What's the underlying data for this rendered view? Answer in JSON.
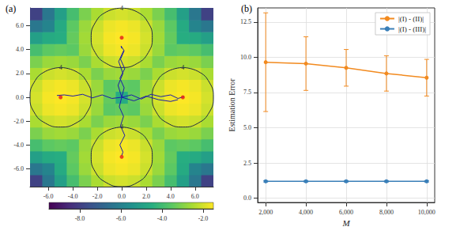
{
  "chart_data": [
    {
      "type": "heatmap",
      "title": "(a)",
      "x": [
        -7,
        -6,
        -5,
        -4,
        -3,
        -2,
        -1,
        0,
        1,
        2,
        3,
        4,
        5,
        6,
        7
      ],
      "y": [
        -7,
        -6,
        -5,
        -4,
        -3,
        -2,
        -1,
        0,
        1,
        2,
        3,
        4,
        5,
        6,
        7
      ],
      "cells": [
        [
          -7.9,
          -6.3,
          -5.0,
          -3.9,
          -3.1,
          -2.5,
          -2.1,
          -2.0,
          -2.1,
          -2.5,
          -3.1,
          -3.9,
          -5.0,
          -6.3,
          -7.9
        ],
        [
          -6.3,
          -5.9,
          -4.6,
          -3.5,
          -2.7,
          -2.1,
          -1.7,
          -1.6,
          -1.7,
          -2.1,
          -2.7,
          -3.5,
          -4.6,
          -5.9,
          -6.3
        ],
        [
          -5.0,
          -4.6,
          -4.5,
          -3.4,
          -2.6,
          -2.0,
          -1.6,
          -1.5,
          -1.6,
          -2.0,
          -2.6,
          -3.4,
          -4.5,
          -4.6,
          -5.0
        ],
        [
          -3.9,
          -3.5,
          -3.4,
          -3.5,
          -2.7,
          -2.1,
          -1.7,
          -1.6,
          -1.7,
          -2.1,
          -2.7,
          -3.5,
          -3.4,
          -3.5,
          -3.9
        ],
        [
          -3.1,
          -2.7,
          -2.6,
          -2.7,
          -3.1,
          -2.5,
          -2.1,
          -2.0,
          -2.1,
          -2.5,
          -3.1,
          -2.7,
          -2.6,
          -2.7,
          -3.1
        ],
        [
          -2.5,
          -2.1,
          -2.0,
          -2.1,
          -2.5,
          -3.1,
          -2.7,
          -2.6,
          -2.7,
          -3.1,
          -2.5,
          -2.1,
          -2.0,
          -2.1,
          -2.5
        ],
        [
          -2.1,
          -1.7,
          -1.6,
          -1.7,
          -2.1,
          -2.7,
          -3.5,
          -3.4,
          -3.5,
          -2.7,
          -2.1,
          -1.7,
          -1.6,
          -1.7,
          -2.1
        ],
        [
          -2.0,
          -1.6,
          -1.5,
          -1.6,
          -2.0,
          -2.6,
          -3.4,
          -4.5,
          -3.4,
          -2.6,
          -2.0,
          -1.6,
          -1.5,
          -1.6,
          -2.0
        ],
        [
          -2.1,
          -1.7,
          -1.6,
          -1.7,
          -2.1,
          -2.7,
          -3.5,
          -3.4,
          -3.5,
          -2.7,
          -2.1,
          -1.7,
          -1.6,
          -1.7,
          -2.1
        ],
        [
          -2.5,
          -2.1,
          -2.0,
          -2.1,
          -2.5,
          -3.1,
          -2.7,
          -2.6,
          -2.7,
          -3.1,
          -2.5,
          -2.1,
          -2.0,
          -2.1,
          -2.5
        ],
        [
          -3.1,
          -2.7,
          -2.6,
          -2.7,
          -3.1,
          -2.5,
          -2.1,
          -2.0,
          -2.1,
          -2.5,
          -3.1,
          -2.7,
          -2.6,
          -2.7,
          -3.1
        ],
        [
          -3.9,
          -3.5,
          -3.4,
          -3.5,
          -2.7,
          -2.1,
          -1.7,
          -1.6,
          -1.7,
          -2.1,
          -2.7,
          -3.5,
          -3.4,
          -3.5,
          -3.9
        ],
        [
          -5.0,
          -4.6,
          -4.5,
          -3.4,
          -2.6,
          -2.0,
          -1.6,
          -1.5,
          -1.6,
          -2.0,
          -2.6,
          -3.4,
          -4.5,
          -4.6,
          -5.0
        ],
        [
          -6.3,
          -5.9,
          -4.6,
          -3.5,
          -2.7,
          -2.1,
          -1.7,
          -1.6,
          -1.7,
          -2.1,
          -2.7,
          -3.5,
          -4.6,
          -5.9,
          -6.3
        ],
        [
          -7.9,
          -6.3,
          -5.0,
          -3.9,
          -3.1,
          -2.5,
          -2.1,
          -2.0,
          -2.1,
          -2.5,
          -3.1,
          -3.9,
          -5.0,
          -6.3,
          -7.9
        ]
      ],
      "xlim": [
        -7.5,
        7.5
      ],
      "ylim": [
        -7.5,
        7.5
      ],
      "xticks": [
        {
          "value": -6,
          "label": "-6.0"
        },
        {
          "value": -4,
          "label": "-4.0"
        },
        {
          "value": -2,
          "label": "-2.0"
        },
        {
          "value": 0,
          "label": "0.0"
        },
        {
          "value": 2,
          "label": "2.0"
        },
        {
          "value": 4,
          "label": "4.0"
        },
        {
          "value": 6,
          "label": "6.0"
        }
      ],
      "yticks": [
        {
          "value": -6,
          "label": "-6.0"
        },
        {
          "value": -4,
          "label": "-4.0"
        },
        {
          "value": -2,
          "label": "-2.0"
        },
        {
          "value": 0,
          "label": "0.0"
        },
        {
          "value": 2,
          "label": "2.0"
        },
        {
          "value": 4,
          "label": "4.0"
        },
        {
          "value": 6,
          "label": "6.0"
        }
      ],
      "colorbar": {
        "range": [
          -9.5,
          -1.5
        ],
        "ticks": [
          {
            "value": -8,
            "label": "-8.0"
          },
          {
            "value": -6,
            "label": "-6.0"
          },
          {
            "value": -4,
            "label": "-4.0"
          },
          {
            "value": -2,
            "label": "-2.0"
          }
        ]
      },
      "contours": [
        {
          "level": 4,
          "color": "#1e2a44",
          "paths": [
            {
              "x": [
                5,
                3.75,
                2.83,
                2.5,
                2.83,
                3.75,
                5,
                6.25,
                7.17,
                7.5,
                7.17,
                6.25,
                5
              ],
              "y": [
                2.5,
                2.17,
                1.25,
                0,
                -1.25,
                -2.17,
                -2.5,
                -2.17,
                -1.25,
                0,
                1.25,
                2.17,
                2.5
              ]
            },
            {
              "x": [
                -5,
                -6.25,
                -7.17,
                -7.5,
                -7.17,
                -6.25,
                -5,
                -3.75,
                -2.83,
                -2.5,
                -2.83,
                -3.75,
                -5
              ],
              "y": [
                2.5,
                2.17,
                1.25,
                0,
                -1.25,
                -2.17,
                -2.5,
                -2.17,
                -1.25,
                0,
                1.25,
                2.17,
                2.5
              ]
            },
            {
              "x": [
                0,
                -1.25,
                -2.17,
                -2.5,
                -2.17,
                -1.25,
                0,
                1.25,
                2.17,
                2.5,
                2.17,
                1.25,
                0
              ],
              "y": [
                7.5,
                7.17,
                6.25,
                5,
                3.75,
                2.83,
                2.5,
                2.83,
                3.75,
                5,
                6.25,
                7.17,
                7.5
              ]
            },
            {
              "x": [
                0,
                -1.25,
                -2.17,
                -2.5,
                -2.17,
                -1.25,
                0,
                1.25,
                2.17,
                2.5,
                2.17,
                1.25,
                0
              ],
              "y": [
                -2.5,
                -2.83,
                -3.75,
                -5,
                -6.25,
                -7.17,
                -7.5,
                -7.17,
                -6.25,
                -5,
                -3.75,
                -2.83,
                -2.5
              ]
            }
          ]
        }
      ],
      "lines": {
        "color": "#1c1caa",
        "paths": [
          {
            "x": [
              0,
              0.8,
              1.6,
              2.4,
              3.2,
              4.0,
              4.6,
              5.1
            ],
            "y": [
              0,
              0.2,
              -0.15,
              0.25,
              0.05,
              0.2,
              -0.1,
              0.05
            ]
          },
          {
            "x": [
              0,
              1,
              2,
              3,
              4,
              4.6
            ],
            "y": [
              0,
              -0.3,
              0.1,
              -0.2,
              -0.35,
              -0.2
            ]
          },
          {
            "x": [
              0,
              -0.8,
              -1.6,
              -2.4,
              -3.2,
              -4.0,
              -4.7,
              -5.3
            ],
            "y": [
              0,
              -0.1,
              0.2,
              -0.05,
              0.25,
              0.1,
              0.2,
              0.15
            ]
          },
          {
            "x": [
              0,
              0.2,
              -0.15,
              0.25,
              -0.1,
              0.2,
              -0.05,
              0.0
            ],
            "y": [
              0,
              0.8,
              1.6,
              2.4,
              3.2,
              3.9,
              4.3,
              4.1
            ]
          },
          {
            "x": [
              0,
              -0.3,
              0.1,
              -0.25,
              0.15
            ],
            "y": [
              0,
              1.0,
              2.0,
              3.0,
              3.9
            ]
          },
          {
            "x": [
              0,
              -0.2,
              0.15,
              -0.1,
              0.25,
              -0.15,
              0.1,
              0.0
            ],
            "y": [
              0,
              -0.8,
              -1.6,
              -2.4,
              -3.2,
              -4.0,
              -4.6,
              -4.9
            ]
          }
        ]
      },
      "points": {
        "color": "#e41a1c",
        "marker": "circle",
        "x": [
          5,
          -5,
          0,
          0
        ],
        "y": [
          0,
          0,
          5,
          -5
        ]
      }
    },
    {
      "type": "line",
      "title": "(b)",
      "x": [
        2000,
        4000,
        6000,
        8000,
        10000
      ],
      "xlim": [
        1600,
        10400
      ],
      "xticks": [
        {
          "value": 2000,
          "label": "2,000"
        },
        {
          "value": 4000,
          "label": "4,000"
        },
        {
          "value": 6000,
          "label": "6,000"
        },
        {
          "value": 8000,
          "label": "8,000"
        },
        {
          "value": 10000,
          "label": "10,000"
        }
      ],
      "ylim": [
        -0.3,
        13.5
      ],
      "yticks": [
        {
          "value": 0,
          "label": "0.0"
        },
        {
          "value": 2.5,
          "label": "2.5"
        },
        {
          "value": 5,
          "label": "5.0"
        },
        {
          "value": 7.5,
          "label": "7.5"
        },
        {
          "value": 10,
          "label": "10.0"
        },
        {
          "value": 12.5,
          "label": "12.5"
        }
      ],
      "xlabel": "M",
      "ylabel": "Estimation Error",
      "grid": true,
      "legend": "upper right",
      "series": [
        {
          "name": "|(I) - (II)|",
          "color": "#f28a1f",
          "marker": "circle",
          "values": [
            9.65,
            9.55,
            9.25,
            8.85,
            8.55
          ],
          "errors": [
            3.5,
            1.9,
            1.3,
            1.25,
            1.3
          ]
        },
        {
          "name": "|(I) - (III)|",
          "color": "#3a7fb8",
          "marker": "circle",
          "values": [
            1.2,
            1.2,
            1.2,
            1.2,
            1.2
          ],
          "errors": [
            0.05,
            0.05,
            0.05,
            0.05,
            0.05
          ]
        }
      ]
    }
  ]
}
